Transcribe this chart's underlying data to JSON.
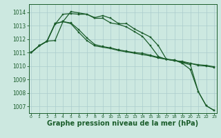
{
  "background_color": "#cce8e0",
  "grid_color": "#aacccc",
  "line_color": "#1a5c2a",
  "xlabel": "Graphe pression niveau de la mer (hPa)",
  "xlabel_fontsize": 7.0,
  "ylim": [
    1006.5,
    1014.6
  ],
  "xlim": [
    -0.3,
    23.3
  ],
  "yticks": [
    1007,
    1008,
    1009,
    1010,
    1011,
    1012,
    1013,
    1014
  ],
  "xticks": [
    0,
    1,
    2,
    3,
    4,
    5,
    6,
    7,
    8,
    9,
    10,
    11,
    12,
    13,
    14,
    15,
    16,
    17,
    18,
    19,
    20,
    21,
    22,
    23
  ],
  "series": [
    {
      "x": [
        0,
        1,
        2,
        3,
        4,
        5,
        6,
        7,
        8,
        9,
        10,
        11,
        12,
        13,
        14,
        15,
        16,
        17,
        18,
        19,
        20,
        21,
        22,
        23
      ],
      "y": [
        1011.0,
        1011.5,
        1011.85,
        1013.1,
        1013.85,
        1013.9,
        1013.85,
        1013.85,
        1013.6,
        1013.75,
        1013.55,
        1013.15,
        1013.15,
        1012.75,
        1012.45,
        1012.15,
        1011.5,
        1010.5,
        1010.45,
        1010.2,
        1009.75,
        1008.1,
        1007.05,
        1006.7
      ]
    },
    {
      "x": [
        0,
        1,
        2,
        3,
        4,
        5,
        6,
        7,
        8,
        9,
        10,
        11,
        12,
        13,
        14,
        15,
        16,
        17,
        18,
        19,
        20,
        21,
        22,
        23
      ],
      "y": [
        1011.0,
        1011.5,
        1011.85,
        1013.15,
        1013.3,
        1013.2,
        1012.7,
        1012.1,
        1011.6,
        1011.45,
        1011.35,
        1011.2,
        1011.1,
        1011.0,
        1010.95,
        1010.8,
        1010.65,
        1010.5,
        1010.4,
        1010.35,
        1010.2,
        1010.1,
        1010.05,
        1009.95
      ]
    },
    {
      "x": [
        0,
        1,
        2,
        3,
        4,
        5,
        6,
        7,
        8,
        9,
        10,
        11,
        12,
        13,
        14,
        15,
        16,
        17,
        18,
        19,
        20,
        21,
        22,
        23
      ],
      "y": [
        1011.0,
        1011.5,
        1011.85,
        1013.15,
        1013.3,
        1013.15,
        1012.5,
        1011.9,
        1011.5,
        1011.4,
        1011.3,
        1011.15,
        1011.05,
        1010.95,
        1010.85,
        1010.75,
        1010.6,
        1010.5,
        1010.4,
        1010.3,
        1010.2,
        1010.05,
        1010.0,
        1009.9
      ]
    },
    {
      "x": [
        0,
        1,
        2,
        3,
        4,
        5,
        6,
        7,
        8,
        9,
        10,
        11,
        12,
        13,
        14,
        15,
        16,
        17,
        18,
        19,
        20,
        21,
        22,
        23
      ],
      "y": [
        1011.0,
        1011.5,
        1011.85,
        1011.9,
        1013.3,
        1014.05,
        1013.95,
        1013.85,
        1013.55,
        1013.55,
        1013.2,
        1013.1,
        1012.9,
        1012.55,
        1012.2,
        1011.5,
        1010.7,
        1010.5,
        1010.45,
        1010.25,
        1010.1,
        1008.1,
        1007.05,
        1006.7
      ]
    }
  ]
}
